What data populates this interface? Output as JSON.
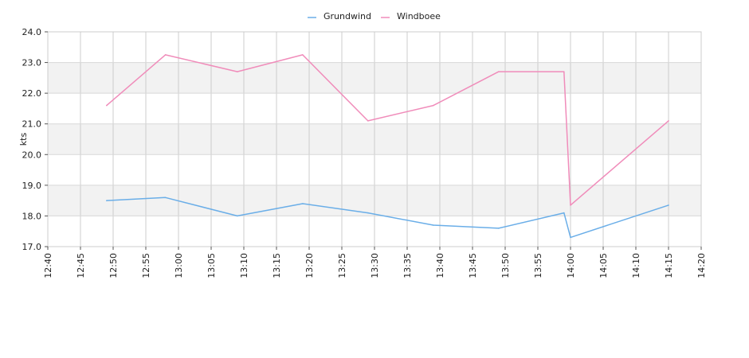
{
  "chart_data": {
    "type": "line",
    "title": "",
    "xlabel": "",
    "ylabel": "kts",
    "ylim": [
      17.0,
      24.0
    ],
    "yticks": [
      "17.0",
      "18.0",
      "19.0",
      "20.0",
      "21.0",
      "22.0",
      "23.0",
      "24.0"
    ],
    "xlim": [
      "12:40",
      "14:20"
    ],
    "xticks": [
      "12:40",
      "12:45",
      "12:50",
      "12:55",
      "13:00",
      "13:05",
      "13:10",
      "13:15",
      "13:20",
      "13:25",
      "13:30",
      "13:35",
      "13:40",
      "13:45",
      "13:50",
      "13:55",
      "14:00",
      "14:05",
      "14:10",
      "14:15",
      "14:20"
    ],
    "grid": true,
    "legend": "top-center",
    "series": [
      {
        "name": "Grundwind",
        "color": "#6aaee8",
        "points": [
          {
            "x": "12:49",
            "y": 18.5
          },
          {
            "x": "12:58",
            "y": 18.6
          },
          {
            "x": "13:09",
            "y": 18.0
          },
          {
            "x": "13:19",
            "y": 18.4
          },
          {
            "x": "13:29",
            "y": 18.1
          },
          {
            "x": "13:39",
            "y": 17.7
          },
          {
            "x": "13:49",
            "y": 17.6
          },
          {
            "x": "13:59",
            "y": 18.1
          },
          {
            "x": "14:00",
            "y": 17.3
          },
          {
            "x": "14:15",
            "y": 18.35
          }
        ]
      },
      {
        "name": "Windboee",
        "color": "#f08cba",
        "points": [
          {
            "x": "12:49",
            "y": 21.6
          },
          {
            "x": "12:58",
            "y": 23.25
          },
          {
            "x": "13:09",
            "y": 22.7
          },
          {
            "x": "13:19",
            "y": 23.25
          },
          {
            "x": "13:29",
            "y": 21.1
          },
          {
            "x": "13:39",
            "y": 21.6
          },
          {
            "x": "13:49",
            "y": 22.7
          },
          {
            "x": "13:59",
            "y": 22.7
          },
          {
            "x": "14:00",
            "y": 18.35
          },
          {
            "x": "14:15",
            "y": 21.1
          }
        ]
      }
    ]
  }
}
